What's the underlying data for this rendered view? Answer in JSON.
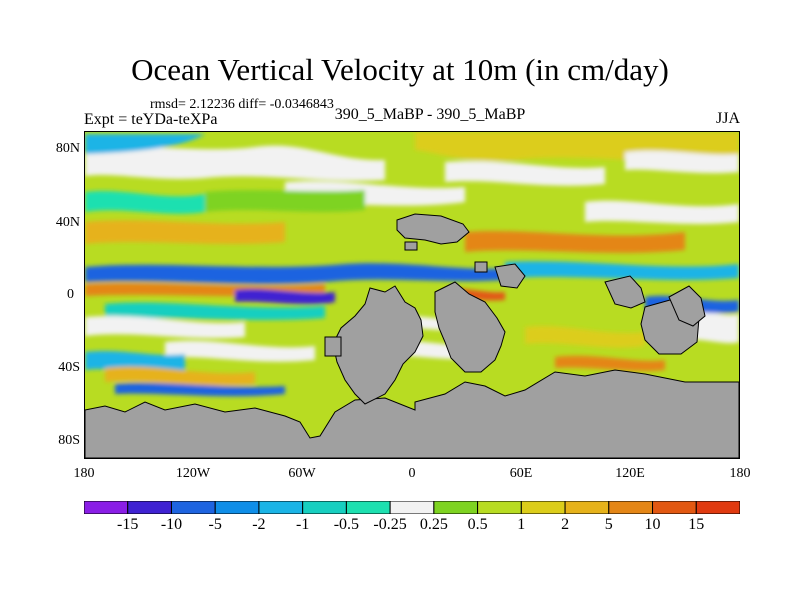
{
  "figure": {
    "title": "Ocean Vertical Velocity at 10m (in cm/day)",
    "stats": "rmsd= 2.12236 diff= -0.0346843",
    "expt": "Expt = teYDa-teXPa",
    "case": "390_5_MaBP - 390_5_MaBP",
    "season": "JJA"
  },
  "axes": {
    "lat_labels": [
      "80N",
      "40N",
      "0",
      "40S",
      "80S"
    ],
    "lon_labels": [
      "180",
      "120W",
      "60W",
      "0",
      "60E",
      "120E",
      "180"
    ]
  },
  "colorbar": {
    "labels": [
      "-15",
      "-10",
      "-5",
      "-2",
      "-1",
      "-0.5",
      "-0.25",
      "0.25",
      "0.5",
      "1",
      "2",
      "5",
      "10",
      "15"
    ],
    "colors": [
      "#8a1ee6",
      "#3f22d2",
      "#1e64e0",
      "#0f8ee8",
      "#1ab4e6",
      "#17cfc0",
      "#1de0b0",
      "#f2f2f2",
      "#7ed321",
      "#b8dc22",
      "#dccd1a",
      "#e6b21a",
      "#e48616",
      "#e25812",
      "#e03a10"
    ]
  },
  "land_color": "#a0a0a0"
}
